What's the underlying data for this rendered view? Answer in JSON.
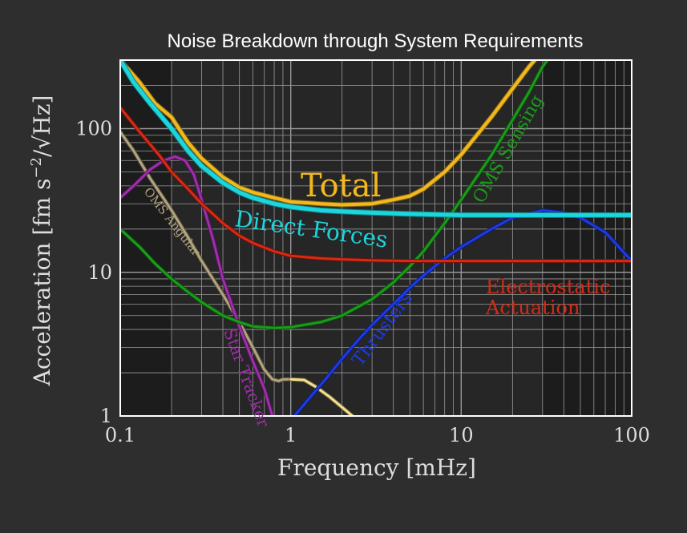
{
  "chart_data": {
    "type": "line",
    "title": "Noise Breakdown through System Requirements",
    "xlabel": "Frequency [mHz]",
    "ylabel": "Acceleration [fm s",
    "ylabel_sup": "−2",
    "ylabel_end": "/√Hz]",
    "x_scale": "log",
    "y_scale": "log",
    "xlim": [
      0.1,
      100
    ],
    "ylim": [
      1,
      300
    ],
    "x_ticks": [
      {
        "value": 0.1,
        "label": "0.1"
      },
      {
        "value": 1,
        "label": "1"
      },
      {
        "value": 10,
        "label": "10"
      },
      {
        "value": 100,
        "label": "100"
      }
    ],
    "y_ticks": [
      {
        "value": 1,
        "label": "1"
      },
      {
        "value": 10,
        "label": "10"
      },
      {
        "value": 100,
        "label": "100"
      }
    ],
    "grid": true,
    "shaded_bands_x": [
      [
        0.1,
        0.2
      ],
      [
        30,
        100
      ]
    ],
    "series": [
      {
        "key": "total",
        "name": "Total",
        "color": "#f2b81c",
        "shadow": "#8a6a12",
        "width": 4,
        "points": [
          [
            0.1,
            300
          ],
          [
            0.13,
            210
          ],
          [
            0.16,
            150
          ],
          [
            0.2,
            120
          ],
          [
            0.25,
            80
          ],
          [
            0.3,
            62
          ],
          [
            0.4,
            46
          ],
          [
            0.5,
            39
          ],
          [
            0.6,
            36
          ],
          [
            0.8,
            33
          ],
          [
            1,
            31
          ],
          [
            1.5,
            30
          ],
          [
            2,
            29.5
          ],
          [
            3,
            30
          ],
          [
            4,
            32
          ],
          [
            5,
            34
          ],
          [
            6,
            38
          ],
          [
            8,
            50
          ],
          [
            10,
            66
          ],
          [
            15,
            120
          ],
          [
            20,
            190
          ],
          [
            25,
            270
          ],
          [
            27,
            300
          ]
        ]
      },
      {
        "key": "direct",
        "name": "Direct Forces",
        "color": "#1bd6dc",
        "shadow": "#137f82",
        "width": 5,
        "points": [
          [
            0.1,
            300
          ],
          [
            0.12,
            210
          ],
          [
            0.15,
            150
          ],
          [
            0.2,
            100
          ],
          [
            0.25,
            70
          ],
          [
            0.3,
            55
          ],
          [
            0.4,
            42
          ],
          [
            0.5,
            36
          ],
          [
            0.6,
            33
          ],
          [
            0.8,
            30
          ],
          [
            1,
            28.5
          ],
          [
            1.5,
            27
          ],
          [
            2,
            26.5
          ],
          [
            3,
            26
          ],
          [
            5,
            25.5
          ],
          [
            10,
            25
          ],
          [
            20,
            25
          ],
          [
            50,
            25
          ],
          [
            100,
            25
          ]
        ]
      },
      {
        "key": "electrostatic",
        "name": "Electrostatic Actuation",
        "color": "#d42b17",
        "shadow": "#6a1208",
        "width": 3,
        "points": [
          [
            0.1,
            140
          ],
          [
            0.13,
            95
          ],
          [
            0.17,
            65
          ],
          [
            0.2,
            50
          ],
          [
            0.25,
            38
          ],
          [
            0.3,
            30
          ],
          [
            0.4,
            22
          ],
          [
            0.5,
            18
          ],
          [
            0.6,
            16
          ],
          [
            0.8,
            14
          ],
          [
            1,
            13
          ],
          [
            1.5,
            12.5
          ],
          [
            2,
            12.3
          ],
          [
            3,
            12.1
          ],
          [
            5,
            12
          ],
          [
            10,
            12
          ],
          [
            20,
            12
          ],
          [
            50,
            12
          ],
          [
            100,
            12
          ]
        ]
      },
      {
        "key": "oms_sensing",
        "name": "OMS Sensing",
        "color": "#1a9c1a",
        "shadow": "#0e4a0e",
        "width": 3,
        "points": [
          [
            0.1,
            20
          ],
          [
            0.13,
            15
          ],
          [
            0.16,
            11.5
          ],
          [
            0.2,
            9
          ],
          [
            0.25,
            7.3
          ],
          [
            0.3,
            6.2
          ],
          [
            0.4,
            5
          ],
          [
            0.5,
            4.5
          ],
          [
            0.6,
            4.2
          ],
          [
            0.8,
            4.1
          ],
          [
            1,
            4.15
          ],
          [
            1.5,
            4.5
          ],
          [
            2,
            5
          ],
          [
            3,
            6.5
          ],
          [
            4,
            8.5
          ],
          [
            5,
            11
          ],
          [
            6,
            14
          ],
          [
            8,
            22
          ],
          [
            10,
            32
          ],
          [
            15,
            65
          ],
          [
            20,
            115
          ],
          [
            25,
            180
          ],
          [
            30,
            270
          ],
          [
            32,
            300
          ]
        ]
      },
      {
        "key": "thrusters",
        "name": "Thrusters",
        "color": "#1e3ae0",
        "shadow": "#0e1c6e",
        "width": 3,
        "points": [
          [
            1.05,
            1
          ],
          [
            1.3,
            1.35
          ],
          [
            1.6,
            1.8
          ],
          [
            2,
            2.5
          ],
          [
            2.5,
            3.4
          ],
          [
            3,
            4.3
          ],
          [
            4,
            6
          ],
          [
            5,
            7.8
          ],
          [
            6,
            9.5
          ],
          [
            8,
            12.5
          ],
          [
            10,
            15
          ],
          [
            15,
            20
          ],
          [
            20,
            24
          ],
          [
            30,
            27
          ],
          [
            40,
            26
          ],
          [
            50,
            24
          ],
          [
            70,
            19
          ],
          [
            100,
            12
          ]
        ]
      },
      {
        "key": "star_tracker",
        "name": "Star Tracker",
        "color": "#9d2fa8",
        "shadow": "#4c1552",
        "width": 3,
        "points": [
          [
            0.1,
            33
          ],
          [
            0.12,
            40
          ],
          [
            0.15,
            52
          ],
          [
            0.18,
            60
          ],
          [
            0.21,
            64
          ],
          [
            0.24,
            60
          ],
          [
            0.27,
            48
          ],
          [
            0.3,
            32
          ],
          [
            0.35,
            17
          ],
          [
            0.4,
            9
          ],
          [
            0.5,
            4.2
          ],
          [
            0.6,
            2.4
          ],
          [
            0.7,
            1.55
          ],
          [
            0.78,
            1
          ]
        ]
      },
      {
        "key": "oms_angular",
        "name": "OMS Angular",
        "color": "#b2a47e",
        "shadow": "#554e3c",
        "width": 3,
        "points": [
          [
            0.1,
            95
          ],
          [
            0.12,
            70
          ],
          [
            0.15,
            45
          ],
          [
            0.2,
            27
          ],
          [
            0.25,
            17.5
          ],
          [
            0.3,
            12
          ],
          [
            0.4,
            7
          ],
          [
            0.5,
            4.5
          ],
          [
            0.6,
            3
          ],
          [
            0.7,
            2.1
          ],
          [
            0.78,
            1.8
          ],
          [
            0.85,
            1.75
          ],
          [
            0.9,
            1.8
          ],
          [
            1,
            1.8
          ]
        ]
      },
      {
        "key": "yellow_tail",
        "name": "",
        "color": "#f2e08c",
        "shadow": "#6e6440",
        "width": 3,
        "points": [
          [
            1,
            1.8
          ],
          [
            1.2,
            1.78
          ],
          [
            1.4,
            1.6
          ],
          [
            1.7,
            1.35
          ],
          [
            2,
            1.15
          ],
          [
            2.3,
            1
          ]
        ]
      }
    ],
    "labels": {
      "total": "Total",
      "direct": "Direct Forces",
      "electrostatic_line1": "Electrostatic",
      "electrostatic_line2": "Actuation",
      "oms_sensing": "OMS Sensing",
      "thrusters": "Thrusters",
      "star_tracker": "Star Tracker",
      "oms_angular": "OMS Angular"
    },
    "colors": {
      "background": "#2e2e2e",
      "plot_background": "#262626",
      "shaded_band": "#1c1c1c",
      "grid": "#9a9a9a",
      "frame": "#ffffff"
    }
  }
}
